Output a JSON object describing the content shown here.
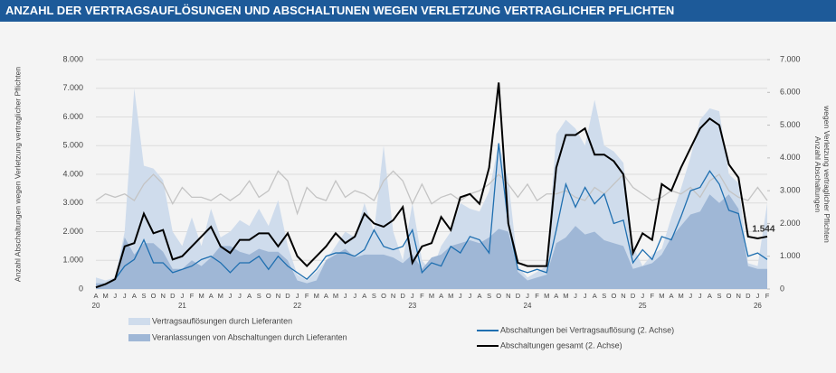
{
  "chart_data": {
    "type": "line",
    "title": "ANZAHL DER VERTRAGSAUFLÖSUNGEN UND ABSCHALTUNEN WEGEN VERLETZUNG VERTRAGLICHER PFLICHTEN",
    "ylabel": "Anzahl Abschaltungen wegen Verletzung vertraglicher Pflichten",
    "y2label": [
      "Anzahl Abschaltungen",
      "wegen Verletzung vertraglicher Pflichten"
    ],
    "categories": [
      "A",
      "M",
      "J",
      "J",
      "A",
      "S",
      "O",
      "N",
      "D",
      "J",
      "F",
      "M",
      "A",
      "M",
      "J",
      "J",
      "A",
      "S",
      "O",
      "N",
      "D",
      "J",
      "F",
      "M",
      "A",
      "M",
      "J",
      "J",
      "A",
      "S",
      "O",
      "N",
      "D",
      "J",
      "F",
      "M",
      "A",
      "M",
      "J",
      "J",
      "A",
      "S",
      "O",
      "N",
      "D",
      "J",
      "F",
      "M",
      "A",
      "M",
      "J",
      "J",
      "A",
      "S",
      "O",
      "N",
      "D",
      "J",
      "F",
      "M",
      "A",
      "M",
      "J",
      "J",
      "A",
      "S",
      "O",
      "N",
      "D",
      "J",
      "F"
    ],
    "year_labels": [
      "20",
      null,
      null,
      null,
      null,
      null,
      null,
      null,
      null,
      "21",
      null,
      null,
      null,
      null,
      null,
      null,
      null,
      null,
      null,
      null,
      null,
      "22",
      null,
      null,
      null,
      null,
      null,
      null,
      null,
      null,
      null,
      null,
      null,
      "23",
      null,
      null,
      null,
      null,
      null,
      null,
      null,
      null,
      null,
      null,
      null,
      "24",
      null,
      null,
      null,
      null,
      null,
      null,
      null,
      null,
      null,
      null,
      null,
      "25",
      null,
      null,
      null,
      null,
      null,
      null,
      null,
      null,
      null,
      null,
      null,
      "26",
      null
    ],
    "ylim": [
      0,
      8000
    ],
    "yticks": [
      0,
      {
        "value": 1000,
        "label": "1.000"
      },
      {
        "value": 2000,
        "label": "2.000"
      },
      {
        "value": 3000,
        "label": "3.000"
      },
      {
        "value": 4000,
        "label": "4.000"
      },
      {
        "value": 5000,
        "label": "5.000"
      },
      {
        "value": 6000,
        "label": "6.000"
      },
      {
        "value": 7000,
        "label": "7.000"
      },
      {
        "value": 8000,
        "label": "8.000"
      }
    ],
    "y2lim": [
      0,
      7000
    ],
    "y2ticks": [
      0,
      {
        "value": 1000,
        "label": "1.000"
      },
      {
        "value": 2000,
        "label": "2.000"
      },
      {
        "value": 3000,
        "label": "3.000"
      },
      {
        "value": 4000,
        "label": "4.000"
      },
      {
        "value": 5000,
        "label": "5.000"
      },
      {
        "value": 6000,
        "label": "6.000"
      },
      {
        "value": 7000,
        "label": "7.000"
      }
    ],
    "grid": true,
    "series": [
      {
        "name": "Vertragsauflösungen durch Lieferanten",
        "kind": "area",
        "color": "#cfdcec",
        "values": [
          400,
          300,
          400,
          2000,
          7000,
          4300,
          4200,
          3800,
          2000,
          1500,
          2500,
          1500,
          2800,
          1800,
          2000,
          2400,
          2200,
          2800,
          2200,
          3100,
          1500,
          500,
          300,
          600,
          1000,
          1500,
          2000,
          1800,
          3000,
          2000,
          5000,
          2000,
          1000,
          3000,
          1000,
          600,
          1500,
          2000,
          3000,
          2800,
          2700,
          3400,
          5100,
          3800,
          800,
          400,
          600,
          800,
          5400,
          5900,
          5600,
          5000,
          6600,
          5000,
          4800,
          4400,
          1500,
          800,
          1200,
          1400,
          2500,
          3500,
          4600,
          5900,
          6300,
          6200,
          4000,
          3700,
          900,
          800,
          3000
        ]
      },
      {
        "name": "Veranlassungen von Abschaltungen durch Lieferanten",
        "kind": "area",
        "color": "#9fb7d6",
        "values": [
          200,
          200,
          300,
          1800,
          1200,
          1600,
          1600,
          1300,
          700,
          700,
          1000,
          800,
          1100,
          1500,
          1500,
          1300,
          1200,
          1400,
          1300,
          1300,
          1000,
          300,
          200,
          300,
          1000,
          1200,
          1400,
          1100,
          1200,
          1200,
          1200,
          1100,
          900,
          1200,
          700,
          1100,
          1200,
          1500,
          1600,
          1700,
          1600,
          1800,
          2100,
          2000,
          600,
          300,
          400,
          500,
          1600,
          1800,
          2200,
          1900,
          2000,
          1700,
          1600,
          1500,
          700,
          800,
          900,
          1200,
          1800,
          2200,
          2600,
          2700,
          3300,
          3000,
          3300,
          2800,
          800,
          700,
          700
        ]
      },
      {
        "kind": "line",
        "axis": "y2",
        "color": "#c4c4c4",
        "values": [
          2700,
          2900,
          2800,
          2900,
          2700,
          3200,
          3500,
          3200,
          2600,
          3100,
          2800,
          2800,
          2700,
          2900,
          2700,
          2900,
          3300,
          2800,
          3000,
          3600,
          3300,
          2300,
          3100,
          2800,
          2700,
          3300,
          2800,
          3000,
          2900,
          2700,
          3300,
          3600,
          3300,
          2600,
          3200,
          2600,
          2800,
          2900,
          2700,
          2900,
          3000,
          3200,
          3500,
          3200,
          2800,
          3200,
          2700,
          2900,
          2900,
          3000,
          2800,
          2700,
          3100,
          2900,
          3200,
          3500,
          3100,
          2900,
          2700,
          2800,
          3000,
          2900,
          3100,
          2800,
          3300,
          3500,
          3000,
          2800,
          2700,
          3100,
          2700
        ]
      },
      {
        "name": "Abschaltungen bei Vertragsauflösung (2. Achse)",
        "kind": "line",
        "axis": "y2",
        "color": "#1f6fb0",
        "values": [
          50,
          150,
          300,
          700,
          900,
          1500,
          800,
          800,
          500,
          600,
          700,
          900,
          1000,
          800,
          500,
          800,
          800,
          1000,
          600,
          1000,
          700,
          500,
          300,
          600,
          1000,
          1100,
          1100,
          1000,
          1200,
          1800,
          1300,
          1200,
          1300,
          1800,
          500,
          800,
          700,
          1300,
          1100,
          1600,
          1500,
          1100,
          4450,
          2000,
          600,
          500,
          600,
          500,
          1800,
          3200,
          2500,
          3100,
          2600,
          2900,
          2000,
          2100,
          800,
          1200,
          900,
          1600,
          1500,
          2200,
          3000,
          3100,
          3600,
          3200,
          2400,
          2300,
          1000,
          1100,
          900
        ]
      },
      {
        "name": "Abschaltungen gesamt (2. Achse)",
        "kind": "line",
        "axis": "y2",
        "color": "#000000",
        "values": [
          50,
          150,
          300,
          1300,
          1400,
          2300,
          1700,
          1800,
          900,
          1000,
          1300,
          1600,
          1900,
          1300,
          1100,
          1500,
          1500,
          1700,
          1700,
          1300,
          1700,
          1000,
          700,
          1000,
          1300,
          1700,
          1400,
          1600,
          2300,
          2000,
          1900,
          2100,
          2500,
          800,
          1300,
          1400,
          2200,
          1800,
          2800,
          2900,
          2600,
          3700,
          6300,
          2000,
          800,
          700,
          700,
          700,
          3700,
          4700,
          4700,
          4900,
          4100,
          4100,
          3900,
          3500,
          1100,
          1700,
          1500,
          3200,
          3000,
          3700,
          4300,
          4900,
          5200,
          5000,
          3800,
          3400,
          1600,
          1544,
          1600
        ],
        "value_labels": [
          null,
          null,
          null,
          null,
          null,
          null,
          null,
          null,
          null,
          null,
          null,
          null,
          null,
          null,
          null,
          null,
          null,
          null,
          null,
          null,
          null,
          null,
          null,
          null,
          null,
          null,
          null,
          null,
          null,
          null,
          null,
          null,
          null,
          null,
          null,
          null,
          null,
          null,
          null,
          null,
          null,
          null,
          null,
          null,
          null,
          null,
          null,
          null,
          null,
          null,
          null,
          null,
          null,
          null,
          null,
          null,
          null,
          null,
          null,
          null,
          null,
          null,
          null,
          null,
          null,
          null,
          null,
          null,
          null,
          "1.544",
          null
        ]
      }
    ]
  }
}
